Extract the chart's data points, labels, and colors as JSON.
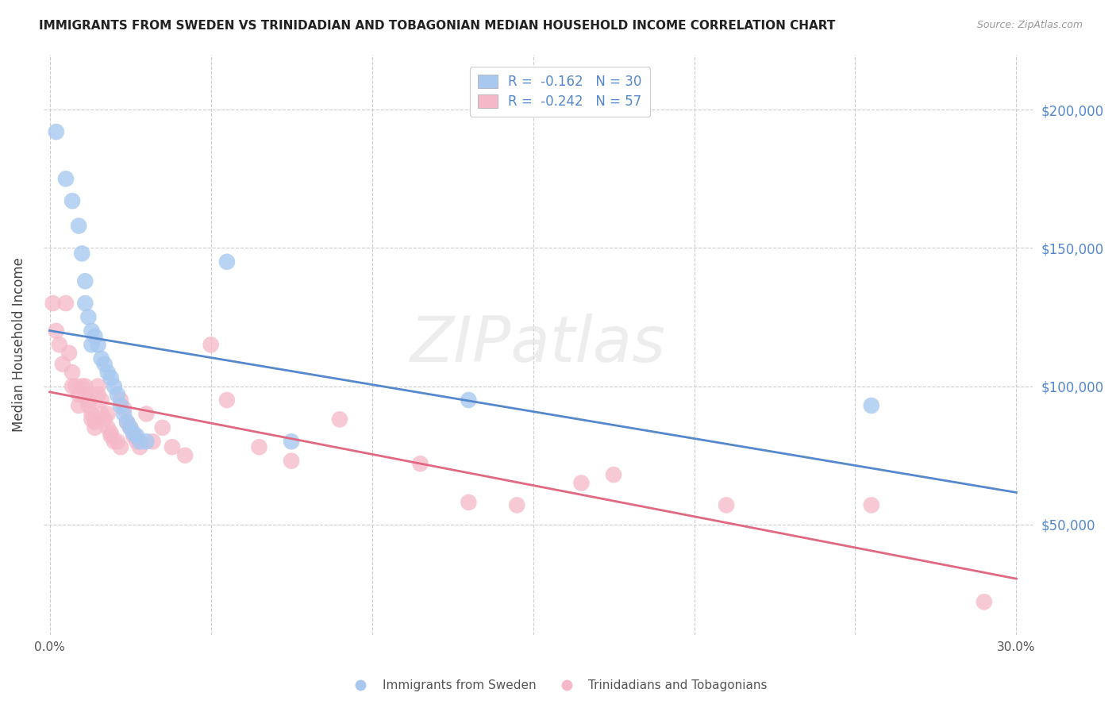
{
  "title": "IMMIGRANTS FROM SWEDEN VS TRINIDADIAN AND TOBAGONIAN MEDIAN HOUSEHOLD INCOME CORRELATION CHART",
  "source": "Source: ZipAtlas.com",
  "ylabel": "Median Household Income",
  "y_ticks": [
    50000,
    100000,
    150000,
    200000
  ],
  "y_tick_labels": [
    "$50,000",
    "$100,000",
    "$150,000",
    "$200,000"
  ],
  "xlim": [
    -0.002,
    0.305
  ],
  "ylim": [
    10000,
    220000
  ],
  "blue_R": "-0.162",
  "blue_N": "30",
  "pink_R": "-0.242",
  "pink_N": "57",
  "blue_color": "#A8C8F0",
  "pink_color": "#F5B8C8",
  "blue_line_color": "#5588CC",
  "pink_line_color": "#E06880",
  "watermark": "ZIPatlas",
  "sweden_x": [
    0.002,
    0.005,
    0.007,
    0.009,
    0.01,
    0.011,
    0.011,
    0.012,
    0.013,
    0.013,
    0.014,
    0.015,
    0.016,
    0.017,
    0.018,
    0.019,
    0.02,
    0.021,
    0.022,
    0.023,
    0.024,
    0.025,
    0.026,
    0.027,
    0.028,
    0.03,
    0.055,
    0.075,
    0.13,
    0.255
  ],
  "sweden_y": [
    192000,
    175000,
    167000,
    158000,
    148000,
    138000,
    130000,
    125000,
    120000,
    115000,
    118000,
    115000,
    110000,
    108000,
    105000,
    103000,
    100000,
    97000,
    93000,
    90000,
    87000,
    85000,
    83000,
    82000,
    80000,
    80000,
    145000,
    80000,
    95000,
    93000
  ],
  "tnt_x": [
    0.001,
    0.002,
    0.003,
    0.004,
    0.005,
    0.006,
    0.007,
    0.007,
    0.008,
    0.009,
    0.009,
    0.01,
    0.011,
    0.011,
    0.012,
    0.012,
    0.013,
    0.013,
    0.014,
    0.014,
    0.015,
    0.015,
    0.016,
    0.016,
    0.017,
    0.018,
    0.018,
    0.019,
    0.019,
    0.02,
    0.021,
    0.022,
    0.022,
    0.023,
    0.024,
    0.025,
    0.026,
    0.027,
    0.028,
    0.03,
    0.032,
    0.035,
    0.038,
    0.042,
    0.05,
    0.055,
    0.065,
    0.075,
    0.09,
    0.115,
    0.13,
    0.145,
    0.165,
    0.175,
    0.21,
    0.255,
    0.29
  ],
  "tnt_y": [
    130000,
    120000,
    115000,
    108000,
    130000,
    112000,
    105000,
    100000,
    100000,
    97000,
    93000,
    100000,
    100000,
    97000,
    95000,
    93000,
    90000,
    88000,
    87000,
    85000,
    100000,
    97000,
    95000,
    90000,
    88000,
    90000,
    85000,
    83000,
    82000,
    80000,
    80000,
    78000,
    95000,
    92000,
    87000,
    85000,
    82000,
    80000,
    78000,
    90000,
    80000,
    85000,
    78000,
    75000,
    115000,
    95000,
    78000,
    73000,
    88000,
    72000,
    58000,
    57000,
    65000,
    68000,
    57000,
    57000,
    22000
  ]
}
